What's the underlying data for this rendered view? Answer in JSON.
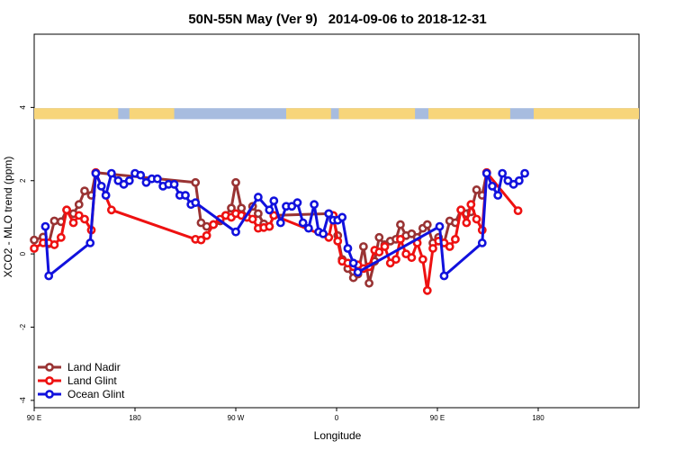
{
  "chart_data": {
    "type": "line",
    "title_main": "50N-55N May (Ver 9)",
    "title_range": "2014-09-06 to 2018-12-31",
    "xlabel": "Longitude",
    "ylabel": "XCO2 - MLO trend (ppm)",
    "xlim": [
      0,
      540
    ],
    "ylim": [
      -4.2,
      6.0
    ],
    "x_ticks": [
      {
        "value": 0,
        "label": "90 E"
      },
      {
        "value": 90,
        "label": "180"
      },
      {
        "value": 180,
        "label": "90 W"
      },
      {
        "value": 270,
        "label": "0"
      },
      {
        "value": 360,
        "label": "90 E"
      },
      {
        "value": 450,
        "label": "180"
      }
    ],
    "y_ticks": [
      {
        "value": -4,
        "label": "-4"
      },
      {
        "value": -2,
        "label": "-2"
      },
      {
        "value": 0,
        "label": "0"
      },
      {
        "value": 2,
        "label": "2"
      },
      {
        "value": 4,
        "label": "4"
      }
    ],
    "land_ocean_band": {
      "y_bottom": 3.68,
      "y_top": 3.98,
      "land_color": "#f7d57a",
      "ocean_color": "#a7bcdf"
    },
    "legend_position": "bottom-left",
    "series": [
      {
        "name": "Land Nadir",
        "color": "#993333",
        "x": [
          0,
          5,
          10,
          15,
          20,
          25,
          30,
          35,
          40,
          45,
          50,
          55,
          60,
          65,
          70,
          75,
          80,
          85,
          90,
          95,
          100,
          105,
          110,
          115,
          120,
          125,
          130,
          135,
          140,
          145,
          150,
          155,
          160,
          165,
          170,
          175,
          180,
          185,
          190,
          195,
          200,
          205,
          210,
          215,
          220,
          225,
          230,
          235,
          240,
          245,
          250,
          255,
          260,
          265,
          270,
          275,
          280,
          285,
          290,
          295,
          300,
          305,
          310,
          315,
          320,
          325,
          330,
          335,
          340,
          345,
          350,
          355,
          360,
          365,
          370,
          375,
          380,
          385,
          390,
          395,
          400,
          405,
          410,
          415,
          420,
          425,
          430,
          435,
          440,
          445,
          450,
          455,
          460,
          465,
          470,
          475,
          480,
          485,
          490,
          495,
          500,
          505,
          510,
          515,
          520,
          525,
          530,
          535,
          540
        ],
        "y": [
          0.38,
          0.46,
          0.28,
          0.9,
          0.88,
          1.2,
          1.1,
          1.35,
          1.72,
          1.6,
          2.22,
          null,
          null,
          null,
          null,
          null,
          null,
          null,
          null,
          null,
          null,
          null,
          null,
          null,
          null,
          null,
          null,
          null,
          null,
          null,
          null,
          null,
          null,
          null,
          null,
          null,
          null,
          null,
          null,
          null,
          null,
          null,
          null,
          null,
          null,
          null,
          null,
          null,
          null,
          null,
          null,
          null,
          null,
          null,
          null,
          null,
          null,
          null,
          null,
          null,
          null,
          null,
          null,
          null,
          null,
          null,
          null,
          null,
          null,
          null,
          null,
          null,
          null,
          null,
          null,
          null,
          null,
          null,
          null,
          null,
          null,
          null,
          null,
          null,
          null,
          null,
          null,
          null,
          null,
          null,
          null,
          null,
          null,
          null,
          null,
          null,
          null,
          null,
          null,
          null,
          null,
          null,
          null,
          null,
          null,
          null,
          null,
          null,
          null
        ],
        "points": [
          [
            0,
            0.38
          ],
          [
            8,
            0.46
          ],
          [
            13,
            0.28
          ],
          [
            18,
            0.9
          ],
          [
            24,
            0.88
          ],
          [
            29,
            1.2
          ],
          [
            35,
            1.1
          ],
          [
            40,
            1.35
          ],
          [
            45,
            1.72
          ],
          [
            51,
            1.6
          ],
          [
            55,
            2.22
          ],
          [
            144,
            1.95
          ],
          [
            149,
            0.85
          ],
          [
            154,
            0.75
          ],
          [
            160,
            0.8
          ],
          [
            166,
            0.9
          ],
          [
            171,
            1.05
          ],
          [
            176,
            1.25
          ],
          [
            180,
            1.95
          ],
          [
            185,
            1.25
          ],
          [
            190,
            1.0
          ],
          [
            195,
            1.3
          ],
          [
            200,
            1.1
          ],
          [
            205,
            0.82
          ],
          [
            210,
            0.75
          ],
          [
            214,
            1.05
          ],
          [
            263,
            1.1
          ],
          [
            267,
            0.95
          ],
          [
            271,
            0.5
          ],
          [
            275,
            -0.15
          ],
          [
            280,
            -0.4
          ],
          [
            285,
            -0.65
          ],
          [
            289,
            -0.55
          ],
          [
            294,
            0.2
          ],
          [
            299,
            -0.8
          ],
          [
            304,
            -0.2
          ],
          [
            308,
            0.45
          ],
          [
            313,
            0.25
          ],
          [
            318,
            0.35
          ],
          [
            323,
            0.4
          ],
          [
            327,
            0.8
          ],
          [
            332,
            0.5
          ],
          [
            337,
            0.55
          ],
          [
            342,
            0.45
          ],
          [
            347,
            0.7
          ],
          [
            351,
            0.8
          ],
          [
            356,
            0.3
          ],
          [
            361,
            0.45
          ],
          [
            366,
            0.3
          ],
          [
            371,
            0.9
          ],
          [
            376,
            0.85
          ],
          [
            381,
            1.2
          ],
          [
            386,
            1.1
          ],
          [
            390,
            1.15
          ],
          [
            395,
            1.75
          ],
          [
            400,
            1.6
          ],
          [
            404,
            2.22
          ]
        ]
      },
      {
        "name": "Land Glint",
        "color": "#ee1111",
        "points": [
          [
            0,
            0.15
          ],
          [
            8,
            0.3
          ],
          [
            13,
            0.3
          ],
          [
            18,
            0.25
          ],
          [
            24,
            0.45
          ],
          [
            29,
            1.2
          ],
          [
            35,
            0.85
          ],
          [
            40,
            1.05
          ],
          [
            45,
            0.95
          ],
          [
            51,
            0.65
          ],
          [
            55,
            2.22
          ],
          [
            69,
            1.2
          ],
          [
            144,
            0.4
          ],
          [
            149,
            0.38
          ],
          [
            154,
            0.5
          ],
          [
            160,
            0.8
          ],
          [
            166,
            0.95
          ],
          [
            171,
            1.05
          ],
          [
            176,
            1.0
          ],
          [
            180,
            1.1
          ],
          [
            185,
            1.05
          ],
          [
            190,
            1.0
          ],
          [
            195,
            0.95
          ],
          [
            200,
            0.7
          ],
          [
            205,
            0.72
          ],
          [
            210,
            0.75
          ],
          [
            214,
            1.05
          ],
          [
            263,
            0.45
          ],
          [
            267,
            1.05
          ],
          [
            271,
            0.35
          ],
          [
            275,
            -0.2
          ],
          [
            280,
            -0.25
          ],
          [
            285,
            -0.35
          ],
          [
            289,
            -0.3
          ],
          [
            294,
            -0.4
          ],
          [
            299,
            -0.35
          ],
          [
            304,
            0.1
          ],
          [
            308,
            0.05
          ],
          [
            313,
            0.2
          ],
          [
            318,
            -0.25
          ],
          [
            323,
            -0.15
          ],
          [
            327,
            0.4
          ],
          [
            332,
            0.0
          ],
          [
            337,
            -0.1
          ],
          [
            342,
            0.3
          ],
          [
            347,
            -0.15
          ],
          [
            351,
            -1.0
          ],
          [
            356,
            0.15
          ],
          [
            361,
            0.35
          ],
          [
            366,
            0.3
          ],
          [
            371,
            0.2
          ],
          [
            376,
            0.4
          ],
          [
            381,
            1.2
          ],
          [
            386,
            0.85
          ],
          [
            390,
            1.35
          ],
          [
            395,
            0.95
          ],
          [
            400,
            0.65
          ],
          [
            404,
            2.22
          ],
          [
            432,
            1.18
          ]
        ]
      },
      {
        "name": "Ocean Glint",
        "color": "#1111dd",
        "points": [
          [
            10,
            0.75
          ],
          [
            13,
            -0.6
          ],
          [
            50,
            0.3
          ],
          [
            55,
            2.2
          ],
          [
            60,
            1.85
          ],
          [
            64,
            1.6
          ],
          [
            69,
            2.2
          ],
          [
            75,
            2.0
          ],
          [
            80,
            1.9
          ],
          [
            85,
            2.0
          ],
          [
            90,
            2.2
          ],
          [
            95,
            2.15
          ],
          [
            100,
            1.95
          ],
          [
            105,
            2.05
          ],
          [
            110,
            2.05
          ],
          [
            115,
            1.85
          ],
          [
            120,
            1.9
          ],
          [
            125,
            1.9
          ],
          [
            130,
            1.6
          ],
          [
            135,
            1.6
          ],
          [
            140,
            1.35
          ],
          [
            144,
            1.4
          ],
          [
            180,
            0.6
          ],
          [
            200,
            1.55
          ],
          [
            210,
            1.2
          ],
          [
            214,
            1.45
          ],
          [
            220,
            0.85
          ],
          [
            225,
            1.3
          ],
          [
            230,
            1.3
          ],
          [
            235,
            1.4
          ],
          [
            240,
            0.85
          ],
          [
            245,
            0.7
          ],
          [
            250,
            1.35
          ],
          [
            254,
            0.6
          ],
          [
            258,
            0.55
          ],
          [
            263,
            1.1
          ],
          [
            267,
            0.92
          ],
          [
            271,
            0.92
          ],
          [
            275,
            1.0
          ],
          [
            280,
            0.15
          ],
          [
            285,
            -0.25
          ],
          [
            289,
            -0.5
          ],
          [
            362,
            0.75
          ],
          [
            366,
            -0.6
          ],
          [
            400,
            0.3
          ],
          [
            404,
            2.2
          ],
          [
            409,
            1.85
          ],
          [
            414,
            1.6
          ],
          [
            418,
            2.2
          ],
          [
            423,
            2.0
          ],
          [
            428,
            1.9
          ],
          [
            433,
            2.0
          ],
          [
            438,
            2.2
          ]
        ]
      }
    ]
  }
}
